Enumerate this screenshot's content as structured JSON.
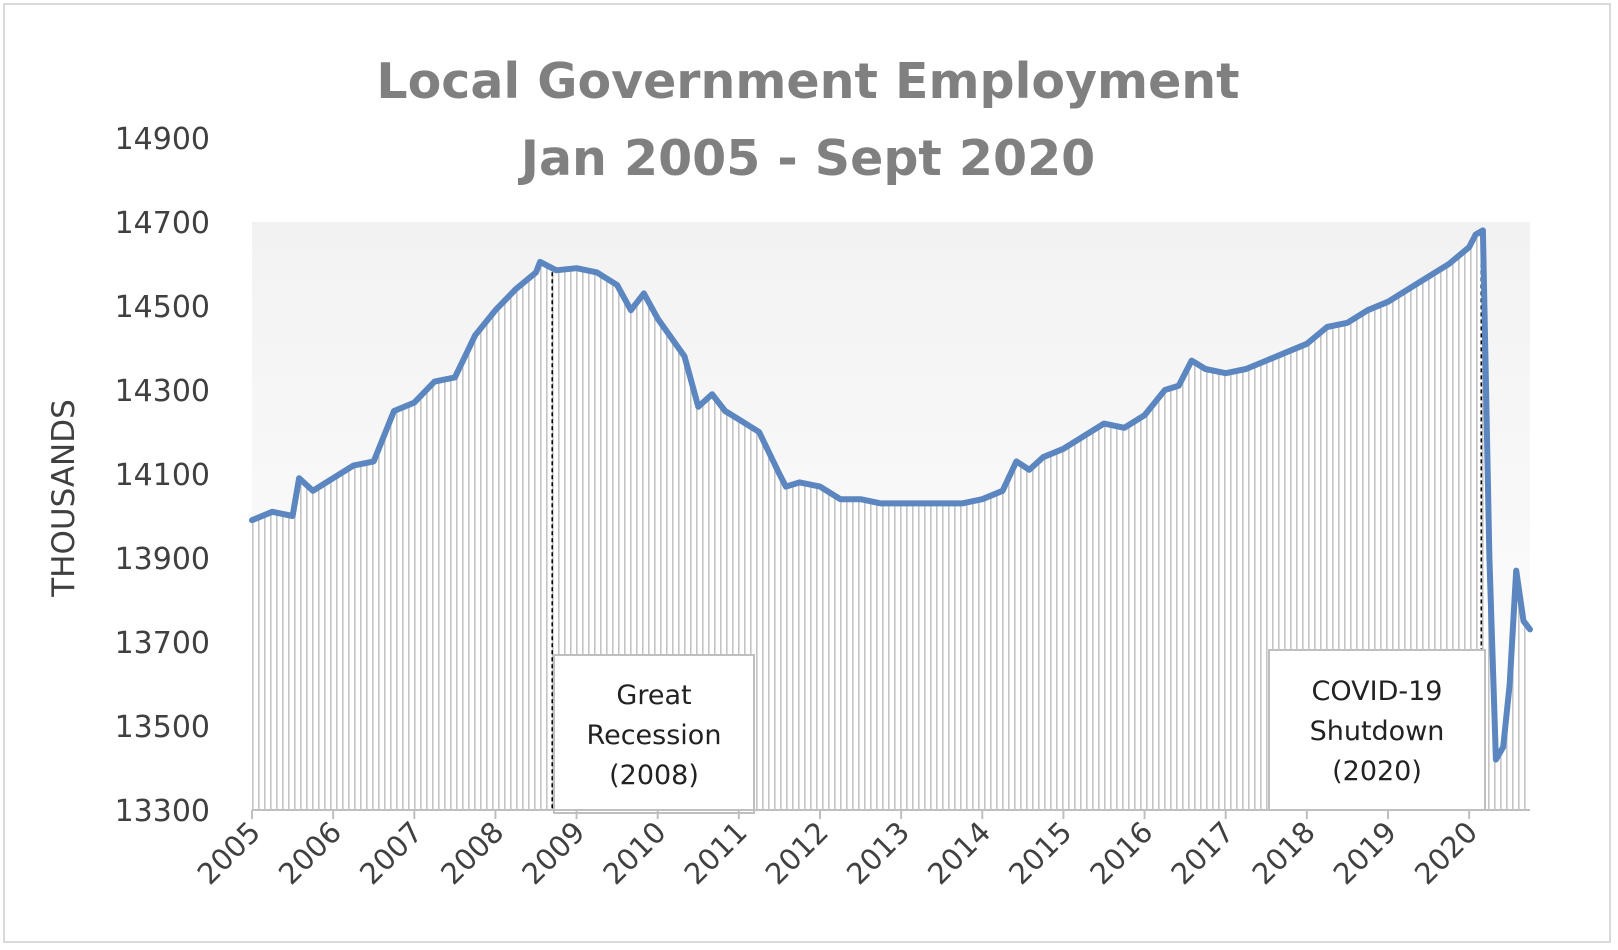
{
  "chart_data": {
    "type": "area",
    "title": "Local Government Employment",
    "subtitle": "Jan 2005 - Sept 2020",
    "xlabel": "",
    "ylabel": "THOUSANDS",
    "ylim": [
      13300,
      14900
    ],
    "yticks": [
      14900,
      14700,
      14500,
      14300,
      14100,
      13900,
      13700,
      13500,
      13300
    ],
    "xlim": [
      2005.0,
      2020.75
    ],
    "xticks": [
      2005,
      2006,
      2007,
      2008,
      2009,
      2010,
      2011,
      2012,
      2013,
      2014,
      2015,
      2016,
      2017,
      2018,
      2019,
      2020
    ],
    "grid": false,
    "line_color": "#5b86c0",
    "fill_color": "#c9c9c9",
    "series": [
      {
        "x": [
          2005.0,
          2005.25,
          2005.5,
          2005.58,
          2005.75,
          2006.0,
          2006.25,
          2006.5,
          2006.75,
          2007.0,
          2007.25,
          2007.5,
          2007.75,
          2008.0,
          2008.25,
          2008.5,
          2008.55,
          2008.75,
          2009.0,
          2009.25,
          2009.5,
          2009.67,
          2009.83,
          2010.0,
          2010.33,
          2010.5,
          2010.67,
          2010.83,
          2011.0,
          2011.25,
          2011.5,
          2011.58,
          2011.75,
          2012.0,
          2012.25,
          2012.5,
          2012.75,
          2013.0,
          2013.25,
          2013.5,
          2013.75,
          2014.0,
          2014.25,
          2014.42,
          2014.58,
          2014.75,
          2015.0,
          2015.25,
          2015.5,
          2015.75,
          2016.0,
          2016.25,
          2016.42,
          2016.58,
          2016.75,
          2017.0,
          2017.25,
          2017.5,
          2017.75,
          2018.0,
          2018.25,
          2018.5,
          2018.75,
          2019.0,
          2019.25,
          2019.5,
          2019.75,
          2020.0,
          2020.08,
          2020.17,
          2020.25,
          2020.33,
          2020.42,
          2020.5,
          2020.58,
          2020.67,
          2020.75
        ],
        "values": [
          13990,
          14010,
          14000,
          14090,
          14060,
          14090,
          14120,
          14130,
          14250,
          14270,
          14320,
          14330,
          14430,
          14490,
          14540,
          14580,
          14605,
          14585,
          14590,
          14580,
          14550,
          14490,
          14530,
          14470,
          14380,
          14260,
          14290,
          14250,
          14230,
          14200,
          14100,
          14070,
          14080,
          14070,
          14040,
          14040,
          14030,
          14030,
          14030,
          14030,
          14030,
          14040,
          14060,
          14130,
          14110,
          14140,
          14160,
          14190,
          14220,
          14210,
          14240,
          14300,
          14310,
          14370,
          14350,
          14340,
          14350,
          14370,
          14390,
          14410,
          14450,
          14460,
          14490,
          14510,
          14540,
          14570,
          14600,
          14640,
          14670,
          14680,
          13900,
          13420,
          13450,
          13600,
          13870,
          13750,
          13730
        ]
      }
    ],
    "annotations": [
      {
        "lines": [
          "Great",
          "Recession",
          "(2008)"
        ],
        "x": 2008.7
      },
      {
        "lines": [
          "COVID-19",
          "Shutdown",
          "(2020)"
        ],
        "x": 2020.15
      }
    ]
  }
}
